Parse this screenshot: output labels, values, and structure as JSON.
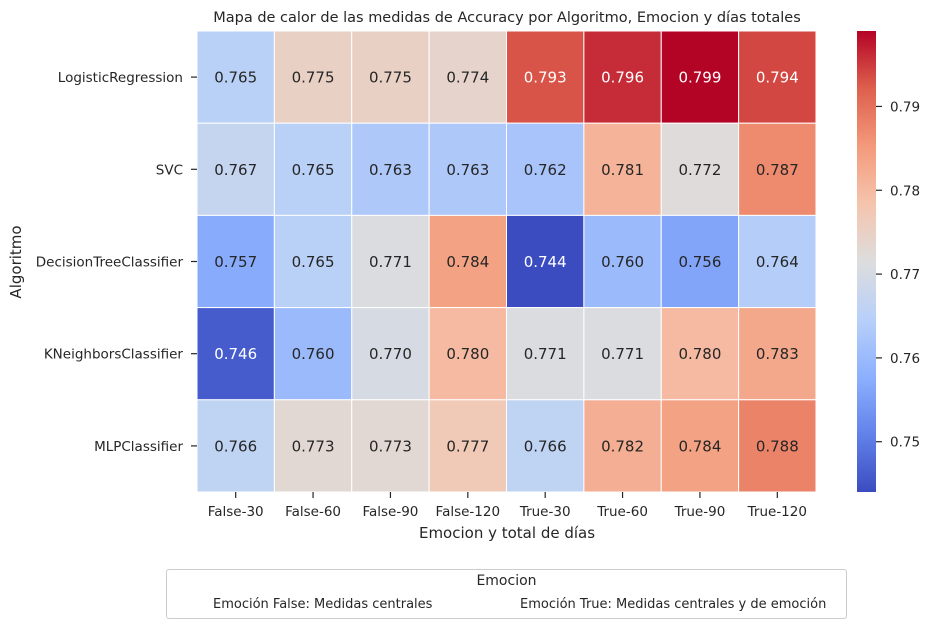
{
  "chart_data": {
    "type": "heatmap",
    "title": "Mapa de calor de las medidas de Accuracy por Algoritmo, Emocion y días totales",
    "xlabel": "Emocion y total de días",
    "ylabel": "Algoritmo",
    "x_categories": [
      "False-30",
      "False-60",
      "False-90",
      "False-120",
      "True-30",
      "True-60",
      "True-90",
      "True-120"
    ],
    "y_categories": [
      "LogisticRegression",
      "SVC",
      "DecisionTreeClassifier",
      "KNeighborsClassifier",
      "MLPClassifier"
    ],
    "values": [
      [
        0.765,
        0.775,
        0.775,
        0.774,
        0.793,
        0.796,
        0.799,
        0.794
      ],
      [
        0.767,
        0.765,
        0.763,
        0.763,
        0.762,
        0.781,
        0.772,
        0.787
      ],
      [
        0.757,
        0.765,
        0.771,
        0.784,
        0.744,
        0.76,
        0.756,
        0.764
      ],
      [
        0.746,
        0.76,
        0.77,
        0.78,
        0.771,
        0.771,
        0.78,
        0.783
      ],
      [
        0.766,
        0.773,
        0.773,
        0.777,
        0.766,
        0.782,
        0.784,
        0.788
      ]
    ],
    "value_format": "3 decimals",
    "colormap": "coolwarm",
    "colorbar": {
      "min": 0.744,
      "max": 0.799,
      "ticks": [
        0.75,
        0.76,
        0.77,
        0.78,
        0.79
      ],
      "tick_labels": [
        "0.75",
        "0.76",
        "0.77",
        "0.78",
        "0.79"
      ]
    },
    "legend": {
      "title": "Emocion",
      "placement": "bottom-center",
      "entries": [
        "Emoción False: Medidas centrales",
        "Emoción True: Medidas centrales y de emoción"
      ]
    }
  }
}
